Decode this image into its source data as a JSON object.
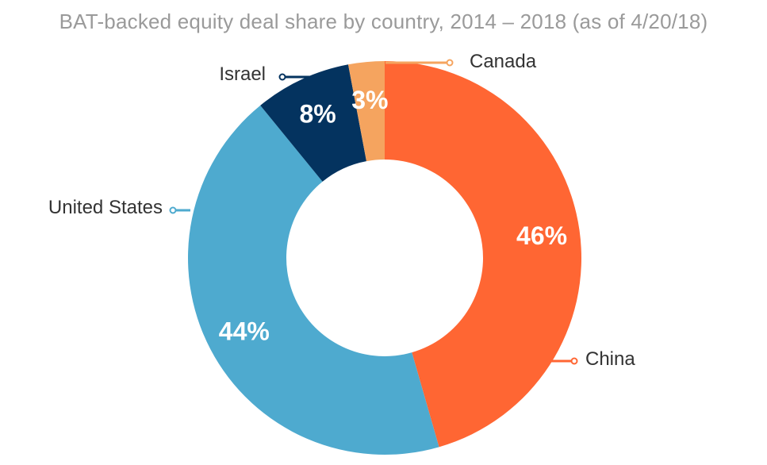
{
  "chart_data": {
    "type": "pie",
    "variant": "donut",
    "title": "BAT-backed equity deal share by country, 2014 – 2018 (as of 4/20/18)",
    "categories": [
      "China",
      "United States",
      "Israel",
      "Canada"
    ],
    "values": [
      46,
      44,
      8,
      3
    ],
    "value_labels": [
      "46%",
      "44%",
      "8%",
      "3%"
    ],
    "colors": [
      "#ff6633",
      "#4eaacf",
      "#04335f",
      "#f5a45f"
    ],
    "legend": "callout labels"
  }
}
